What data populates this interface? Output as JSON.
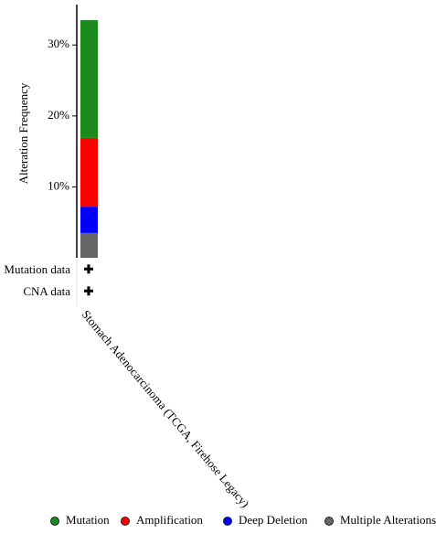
{
  "chart_data": {
    "type": "stacked_bar",
    "y_label": "Alteration Frequency",
    "categories": [
      "Stomach Adenocarcinoma (TCGA, Firehose Legacy)"
    ],
    "series": [
      {
        "name": "Mutation",
        "color": "#1a8a1a",
        "values": [
          16.6
        ]
      },
      {
        "name": "Amplification",
        "color": "#ff0000",
        "values": [
          9.7
        ]
      },
      {
        "name": "Deep Deletion",
        "color": "#0000ff",
        "values": [
          3.7
        ]
      },
      {
        "name": "Multiple Alterations",
        "color": "#666666",
        "values": [
          3.5
        ]
      }
    ],
    "ylim": [
      0,
      35.7
    ],
    "yticks": [
      {
        "value": 10,
        "label": "10%"
      },
      {
        "value": 20,
        "label": "20%"
      },
      {
        "value": 30,
        "label": "30%"
      }
    ],
    "profile_rows": [
      {
        "label": "Mutation data",
        "mark": "✚"
      },
      {
        "label": "CNA data",
        "mark": "✚"
      }
    ]
  }
}
